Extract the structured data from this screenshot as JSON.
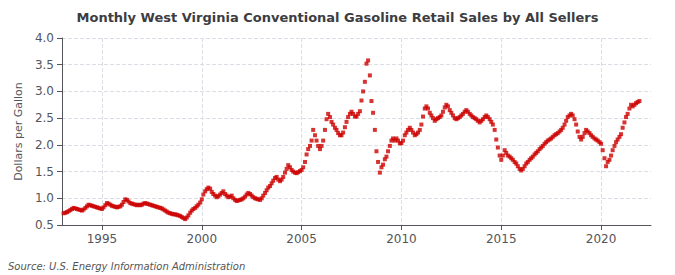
{
  "chart_data": {
    "type": "scatter",
    "title": "Monthly West Virginia Conventional Gasoline Retail Sales by All Sellers",
    "ylabel": "Dollars per Gallon",
    "annotation": "Source: U.S. Energy Information Administration",
    "color": "#cc0000",
    "marker": "square",
    "grid": true,
    "xlim": [
      1993.0,
      2022.5
    ],
    "xticks": [
      1995,
      2000,
      2005,
      2010,
      2015,
      2020
    ],
    "ylim": [
      0.5,
      4.0
    ],
    "yticks": [
      0.5,
      {
        "value": 1.0,
        "label": "1.0"
      },
      1.5,
      {
        "value": 2.0,
        "label": "2.0"
      },
      2.5,
      {
        "value": 3.0,
        "label": "3.0"
      },
      3.5,
      {
        "value": 4.0,
        "label": "4.0"
      }
    ],
    "x": [
      1993.08,
      1993.17,
      1993.25,
      1993.33,
      1993.42,
      1993.5,
      1993.58,
      1993.67,
      1993.75,
      1993.83,
      1993.92,
      1994.0,
      1994.08,
      1994.17,
      1994.25,
      1994.33,
      1994.42,
      1994.5,
      1994.58,
      1994.67,
      1994.75,
      1994.83,
      1994.92,
      1995.0,
      1995.08,
      1995.17,
      1995.25,
      1995.33,
      1995.42,
      1995.5,
      1995.58,
      1995.67,
      1995.75,
      1995.83,
      1995.92,
      1996.0,
      1996.08,
      1996.17,
      1996.25,
      1996.33,
      1996.42,
      1996.5,
      1996.58,
      1996.67,
      1996.75,
      1996.83,
      1996.92,
      1997.0,
      1997.08,
      1997.17,
      1997.25,
      1997.33,
      1997.42,
      1997.5,
      1997.58,
      1997.67,
      1997.75,
      1997.83,
      1997.92,
      1998.0,
      1998.08,
      1998.17,
      1998.25,
      1998.33,
      1998.42,
      1998.5,
      1998.58,
      1998.67,
      1998.75,
      1998.83,
      1998.92,
      1999.0,
      1999.08,
      1999.17,
      1999.25,
      1999.33,
      1999.42,
      1999.5,
      1999.58,
      1999.67,
      1999.75,
      1999.83,
      1999.92,
      2000.0,
      2000.08,
      2000.17,
      2000.25,
      2000.33,
      2000.42,
      2000.5,
      2000.58,
      2000.67,
      2000.75,
      2000.83,
      2000.92,
      2001.0,
      2001.08,
      2001.17,
      2001.25,
      2001.33,
      2001.42,
      2001.5,
      2001.58,
      2001.67,
      2001.75,
      2001.83,
      2001.92,
      2002.0,
      2002.08,
      2002.17,
      2002.25,
      2002.33,
      2002.42,
      2002.5,
      2002.58,
      2002.67,
      2002.75,
      2002.83,
      2002.92,
      2003.0,
      2003.08,
      2003.17,
      2003.25,
      2003.33,
      2003.42,
      2003.5,
      2003.58,
      2003.67,
      2003.75,
      2003.83,
      2003.92,
      2004.0,
      2004.08,
      2004.17,
      2004.25,
      2004.33,
      2004.42,
      2004.5,
      2004.58,
      2004.67,
      2004.75,
      2004.83,
      2004.92,
      2005.0,
      2005.08,
      2005.17,
      2005.25,
      2005.33,
      2005.42,
      2005.5,
      2005.58,
      2005.67,
      2005.75,
      2005.83,
      2005.92,
      2006.0,
      2006.08,
      2006.17,
      2006.25,
      2006.33,
      2006.42,
      2006.5,
      2006.58,
      2006.67,
      2006.75,
      2006.83,
      2006.92,
      2007.0,
      2007.08,
      2007.17,
      2007.25,
      2007.33,
      2007.42,
      2007.5,
      2007.58,
      2007.67,
      2007.75,
      2007.83,
      2007.92,
      2008.0,
      2008.08,
      2008.17,
      2008.25,
      2008.33,
      2008.42,
      2008.5,
      2008.58,
      2008.67,
      2008.75,
      2008.83,
      2008.92,
      2009.0,
      2009.08,
      2009.17,
      2009.25,
      2009.33,
      2009.42,
      2009.5,
      2009.58,
      2009.67,
      2009.75,
      2009.83,
      2009.92,
      2010.0,
      2010.08,
      2010.17,
      2010.25,
      2010.33,
      2010.42,
      2010.5,
      2010.58,
      2010.67,
      2010.75,
      2010.83,
      2010.92,
      2011.0,
      2011.08,
      2011.17,
      2011.25,
      2011.33,
      2011.42,
      2011.5,
      2011.58,
      2011.67,
      2011.75,
      2011.83,
      2011.92,
      2012.0,
      2012.08,
      2012.17,
      2012.25,
      2012.33,
      2012.42,
      2012.5,
      2012.58,
      2012.67,
      2012.75,
      2012.83,
      2012.92,
      2013.0,
      2013.08,
      2013.17,
      2013.25,
      2013.33,
      2013.42,
      2013.5,
      2013.58,
      2013.67,
      2013.75,
      2013.83,
      2013.92,
      2014.0,
      2014.08,
      2014.17,
      2014.25,
      2014.33,
      2014.42,
      2014.5,
      2014.58,
      2014.67,
      2014.75,
      2014.83,
      2014.92,
      2015.0,
      2015.08,
      2015.17,
      2015.25,
      2015.33,
      2015.42,
      2015.5,
      2015.58,
      2015.67,
      2015.75,
      2015.83,
      2015.92,
      2016.0,
      2016.08,
      2016.17,
      2016.25,
      2016.33,
      2016.42,
      2016.5,
      2016.58,
      2016.67,
      2016.75,
      2016.83,
      2016.92,
      2017.0,
      2017.08,
      2017.17,
      2017.25,
      2017.33,
      2017.42,
      2017.5,
      2017.58,
      2017.67,
      2017.75,
      2017.83,
      2017.92,
      2018.0,
      2018.08,
      2018.17,
      2018.25,
      2018.33,
      2018.42,
      2018.5,
      2018.58,
      2018.67,
      2018.75,
      2018.83,
      2018.92,
      2019.0,
      2019.08,
      2019.17,
      2019.25,
      2019.33,
      2019.42,
      2019.5,
      2019.58,
      2019.67,
      2019.75,
      2019.83,
      2019.92,
      2020.0,
      2020.08,
      2020.17,
      2020.25,
      2020.33,
      2020.42,
      2020.5,
      2020.58,
      2020.67,
      2020.75,
      2020.83,
      2020.92,
      2021.0,
      2021.08,
      2021.17,
      2021.25,
      2021.33,
      2021.42,
      2021.5,
      2021.58,
      2021.67,
      2021.75,
      2021.83,
      2021.92
    ],
    "values": [
      0.72,
      0.73,
      0.74,
      0.76,
      0.78,
      0.8,
      0.82,
      0.81,
      0.8,
      0.79,
      0.78,
      0.77,
      0.79,
      0.82,
      0.85,
      0.88,
      0.87,
      0.86,
      0.85,
      0.84,
      0.83,
      0.82,
      0.81,
      0.8,
      0.83,
      0.87,
      0.91,
      0.9,
      0.88,
      0.86,
      0.85,
      0.84,
      0.83,
      0.84,
      0.85,
      0.88,
      0.93,
      0.98,
      0.97,
      0.94,
      0.91,
      0.9,
      0.89,
      0.88,
      0.87,
      0.88,
      0.87,
      0.88,
      0.9,
      0.91,
      0.9,
      0.89,
      0.88,
      0.87,
      0.86,
      0.85,
      0.84,
      0.83,
      0.82,
      0.81,
      0.79,
      0.77,
      0.75,
      0.73,
      0.72,
      0.71,
      0.7,
      0.7,
      0.69,
      0.68,
      0.67,
      0.65,
      0.63,
      0.61,
      0.64,
      0.68,
      0.73,
      0.77,
      0.8,
      0.82,
      0.85,
      0.88,
      0.92,
      0.98,
      1.07,
      1.13,
      1.17,
      1.2,
      1.18,
      1.12,
      1.08,
      1.05,
      1.02,
      1.04,
      1.07,
      1.1,
      1.13,
      1.08,
      1.05,
      1.02,
      1.03,
      1.05,
      1.0,
      0.97,
      0.95,
      0.96,
      0.97,
      0.98,
      1.0,
      1.03,
      1.07,
      1.1,
      1.08,
      1.05,
      1.02,
      1.0,
      0.99,
      0.98,
      0.97,
      1.0,
      1.05,
      1.1,
      1.15,
      1.2,
      1.23,
      1.28,
      1.33,
      1.38,
      1.4,
      1.35,
      1.32,
      1.35,
      1.4,
      1.48,
      1.55,
      1.62,
      1.58,
      1.53,
      1.5,
      1.48,
      1.47,
      1.49,
      1.51,
      1.53,
      1.58,
      1.68,
      1.82,
      1.92,
      1.98,
      2.08,
      2.28,
      2.18,
      2.08,
      1.98,
      1.92,
      1.98,
      2.08,
      2.28,
      2.48,
      2.58,
      2.52,
      2.43,
      2.38,
      2.32,
      2.28,
      2.22,
      2.18,
      2.18,
      2.23,
      2.33,
      2.43,
      2.52,
      2.58,
      2.62,
      2.58,
      2.53,
      2.53,
      2.58,
      2.63,
      2.83,
      3.0,
      3.18,
      3.52,
      3.58,
      3.3,
      2.82,
      2.6,
      2.28,
      1.88,
      1.68,
      1.48,
      1.58,
      1.63,
      1.73,
      1.78,
      1.88,
      1.98,
      2.08,
      2.12,
      2.08,
      2.12,
      2.08,
      2.03,
      2.03,
      2.08,
      2.18,
      2.23,
      2.28,
      2.32,
      2.28,
      2.23,
      2.18,
      2.2,
      2.23,
      2.28,
      2.38,
      2.53,
      2.68,
      2.72,
      2.68,
      2.6,
      2.55,
      2.5,
      2.45,
      2.48,
      2.5,
      2.52,
      2.55,
      2.62,
      2.7,
      2.75,
      2.72,
      2.65,
      2.6,
      2.55,
      2.5,
      2.48,
      2.5,
      2.52,
      2.55,
      2.58,
      2.62,
      2.65,
      2.62,
      2.58,
      2.55,
      2.52,
      2.5,
      2.48,
      2.45,
      2.42,
      2.45,
      2.48,
      2.52,
      2.55,
      2.52,
      2.48,
      2.43,
      2.38,
      2.28,
      2.1,
      1.95,
      1.8,
      1.72,
      1.8,
      1.9,
      1.85,
      1.8,
      1.78,
      1.75,
      1.72,
      1.68,
      1.65,
      1.6,
      1.55,
      1.52,
      1.55,
      1.6,
      1.65,
      1.68,
      1.72,
      1.75,
      1.78,
      1.82,
      1.85,
      1.88,
      1.92,
      1.95,
      1.98,
      2.02,
      2.05,
      2.08,
      2.1,
      2.12,
      2.15,
      2.18,
      2.2,
      2.22,
      2.25,
      2.28,
      2.32,
      2.38,
      2.45,
      2.52,
      2.55,
      2.58,
      2.55,
      2.48,
      2.38,
      2.25,
      2.15,
      2.1,
      2.15,
      2.22,
      2.28,
      2.25,
      2.22,
      2.18,
      2.15,
      2.12,
      2.1,
      2.08,
      2.05,
      2.02,
      1.9,
      1.75,
      1.6,
      1.68,
      1.72,
      1.8,
      1.9,
      1.98,
      2.05,
      2.1,
      2.15,
      2.2,
      2.32,
      2.42,
      2.52,
      2.58,
      2.68,
      2.75,
      2.72,
      2.75,
      2.78,
      2.8,
      2.82
    ]
  }
}
